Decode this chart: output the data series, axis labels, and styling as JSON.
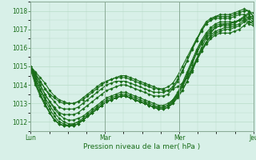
{
  "xlabel": "Pression niveau de la mer( hPa )",
  "bg_color": "#d8f0e8",
  "grid_color": "#b8dcc8",
  "line_color": "#1a6e1a",
  "marker": "D",
  "markersize": 1.8,
  "linewidth": 0.8,
  "ylim": [
    1011.5,
    1018.5
  ],
  "yticks": [
    1012,
    1013,
    1014,
    1015,
    1016,
    1017,
    1018
  ],
  "tick_fontsize": 5.5,
  "xlabel_fontsize": 6.5,
  "xtick_labels": [
    "Lun",
    "Mar",
    "Mer",
    "Jeu"
  ],
  "xtick_positions": [
    0,
    48,
    96,
    144
  ],
  "x_total": 144,
  "series": [
    [
      1015.0,
      1014.6,
      1014.2,
      1013.8,
      1013.5,
      1013.3,
      1013.1,
      1013.0,
      1013.0,
      1013.0,
      1013.1,
      1013.2,
      1013.4,
      1013.6,
      1013.8,
      1014.0,
      1014.2,
      1014.3,
      1014.4,
      1014.5,
      1014.5,
      1014.4,
      1014.3,
      1014.2,
      1014.1,
      1014.0,
      1013.9,
      1013.8,
      1013.7,
      1013.7,
      1013.8,
      1013.9,
      1014.1,
      1014.4,
      1014.8,
      1015.3,
      1015.8,
      1016.2,
      1016.5,
      1016.7,
      1016.8,
      1016.8,
      1016.8,
      1016.9,
      1017.0,
      1017.2,
      1017.4,
      1017.4
    ],
    [
      1015.0,
      1014.4,
      1013.8,
      1013.3,
      1012.9,
      1012.5,
      1012.2,
      1012.0,
      1011.9,
      1011.9,
      1012.0,
      1012.1,
      1012.3,
      1012.5,
      1012.7,
      1012.9,
      1013.1,
      1013.2,
      1013.3,
      1013.4,
      1013.4,
      1013.3,
      1013.2,
      1013.1,
      1013.0,
      1012.9,
      1012.8,
      1012.8,
      1012.8,
      1012.9,
      1013.1,
      1013.4,
      1013.7,
      1014.2,
      1014.7,
      1015.3,
      1015.8,
      1016.3,
      1016.6,
      1016.8,
      1016.9,
      1017.0,
      1017.0,
      1017.1,
      1017.2,
      1017.4,
      1017.6,
      1017.6
    ],
    [
      1015.0,
      1014.5,
      1014.0,
      1013.5,
      1013.1,
      1012.7,
      1012.4,
      1012.2,
      1012.1,
      1012.1,
      1012.2,
      1012.3,
      1012.5,
      1012.7,
      1012.9,
      1013.1,
      1013.3,
      1013.4,
      1013.5,
      1013.6,
      1013.6,
      1013.5,
      1013.4,
      1013.3,
      1013.2,
      1013.1,
      1013.0,
      1012.9,
      1012.9,
      1013.0,
      1013.2,
      1013.5,
      1013.9,
      1014.4,
      1014.9,
      1015.4,
      1015.9,
      1016.3,
      1016.7,
      1016.9,
      1017.0,
      1017.1,
      1017.1,
      1017.2,
      1017.3,
      1017.5,
      1017.7,
      1017.7
    ],
    [
      1015.0,
      1014.3,
      1013.7,
      1013.2,
      1012.7,
      1012.3,
      1012.0,
      1011.9,
      1011.8,
      1011.8,
      1011.9,
      1012.1,
      1012.3,
      1012.5,
      1012.7,
      1012.9,
      1013.1,
      1013.2,
      1013.3,
      1013.4,
      1013.4,
      1013.3,
      1013.2,
      1013.1,
      1013.0,
      1012.9,
      1012.8,
      1012.7,
      1012.7,
      1012.8,
      1013.0,
      1013.3,
      1013.7,
      1014.2,
      1014.8,
      1015.4,
      1016.0,
      1016.5,
      1016.8,
      1017.1,
      1017.2,
      1017.2,
      1017.2,
      1017.3,
      1017.5,
      1017.7,
      1017.9,
      1017.9
    ],
    [
      1015.0,
      1014.2,
      1013.5,
      1013.0,
      1012.5,
      1012.1,
      1011.9,
      1011.8,
      1011.8,
      1011.8,
      1011.9,
      1012.1,
      1012.3,
      1012.5,
      1012.7,
      1012.9,
      1013.1,
      1013.2,
      1013.3,
      1013.4,
      1013.4,
      1013.3,
      1013.2,
      1013.1,
      1013.0,
      1012.9,
      1012.8,
      1012.7,
      1012.7,
      1012.8,
      1013.0,
      1013.4,
      1013.9,
      1014.5,
      1015.1,
      1015.7,
      1016.2,
      1016.6,
      1016.9,
      1017.1,
      1017.2,
      1017.3,
      1017.3,
      1017.4,
      1017.5,
      1017.7,
      1017.8,
      1017.5
    ],
    [
      1014.9,
      1014.1,
      1013.5,
      1013.0,
      1012.5,
      1012.1,
      1011.9,
      1011.8,
      1011.8,
      1011.8,
      1011.9,
      1012.1,
      1012.3,
      1012.5,
      1012.7,
      1012.9,
      1013.1,
      1013.2,
      1013.3,
      1013.4,
      1013.4,
      1013.3,
      1013.2,
      1013.1,
      1013.0,
      1012.9,
      1012.8,
      1012.7,
      1012.7,
      1012.8,
      1013.1,
      1013.5,
      1014.0,
      1014.6,
      1015.2,
      1015.8,
      1016.3,
      1016.7,
      1017.0,
      1017.2,
      1017.3,
      1017.3,
      1017.3,
      1017.4,
      1017.5,
      1017.6,
      1017.4,
      1017.3
    ],
    [
      1014.8,
      1014.0,
      1013.4,
      1012.9,
      1012.5,
      1012.1,
      1011.9,
      1011.8,
      1011.8,
      1011.9,
      1012.0,
      1012.2,
      1012.4,
      1012.6,
      1012.8,
      1013.0,
      1013.2,
      1013.3,
      1013.4,
      1013.5,
      1013.5,
      1013.4,
      1013.3,
      1013.2,
      1013.1,
      1013.0,
      1012.9,
      1012.8,
      1012.8,
      1012.9,
      1013.2,
      1013.6,
      1014.1,
      1014.7,
      1015.3,
      1015.9,
      1016.4,
      1016.8,
      1017.1,
      1017.3,
      1017.4,
      1017.4,
      1017.4,
      1017.4,
      1017.5,
      1017.5,
      1017.3,
      1017.2
    ],
    [
      1015.0,
      1014.6,
      1014.2,
      1013.8,
      1013.4,
      1013.1,
      1012.8,
      1012.7,
      1012.7,
      1012.7,
      1012.8,
      1013.0,
      1013.2,
      1013.4,
      1013.6,
      1013.8,
      1014.0,
      1014.1,
      1014.2,
      1014.2,
      1014.2,
      1014.1,
      1014.0,
      1013.9,
      1013.8,
      1013.7,
      1013.6,
      1013.6,
      1013.6,
      1013.7,
      1013.9,
      1014.3,
      1014.8,
      1015.3,
      1015.9,
      1016.4,
      1016.9,
      1017.3,
      1017.5,
      1017.7,
      1017.7,
      1017.7,
      1017.7,
      1017.8,
      1017.9,
      1018.0,
      1018.0,
      1017.7
    ],
    [
      1015.0,
      1014.5,
      1014.0,
      1013.5,
      1013.1,
      1012.8,
      1012.5,
      1012.4,
      1012.4,
      1012.4,
      1012.5,
      1012.7,
      1012.9,
      1013.1,
      1013.3,
      1013.5,
      1013.7,
      1013.8,
      1013.9,
      1014.0,
      1014.0,
      1013.9,
      1013.8,
      1013.7,
      1013.6,
      1013.5,
      1013.4,
      1013.4,
      1013.4,
      1013.5,
      1013.8,
      1014.2,
      1014.7,
      1015.3,
      1015.9,
      1016.4,
      1017.0,
      1017.4,
      1017.6,
      1017.7,
      1017.8,
      1017.8,
      1017.8,
      1017.9,
      1018.0,
      1018.1,
      1018.0,
      1017.7
    ],
    [
      1015.0,
      1014.7,
      1014.4,
      1014.1,
      1013.7,
      1013.4,
      1013.2,
      1013.1,
      1013.0,
      1013.0,
      1013.1,
      1013.3,
      1013.5,
      1013.7,
      1013.9,
      1014.1,
      1014.2,
      1014.3,
      1014.4,
      1014.4,
      1014.4,
      1014.3,
      1014.2,
      1014.1,
      1014.0,
      1013.9,
      1013.8,
      1013.8,
      1013.8,
      1013.9,
      1014.1,
      1014.5,
      1015.0,
      1015.5,
      1016.0,
      1016.5,
      1016.9,
      1017.3,
      1017.5,
      1017.6,
      1017.6,
      1017.6,
      1017.6,
      1017.7,
      1017.8,
      1017.8,
      1017.6,
      1017.4
    ]
  ]
}
